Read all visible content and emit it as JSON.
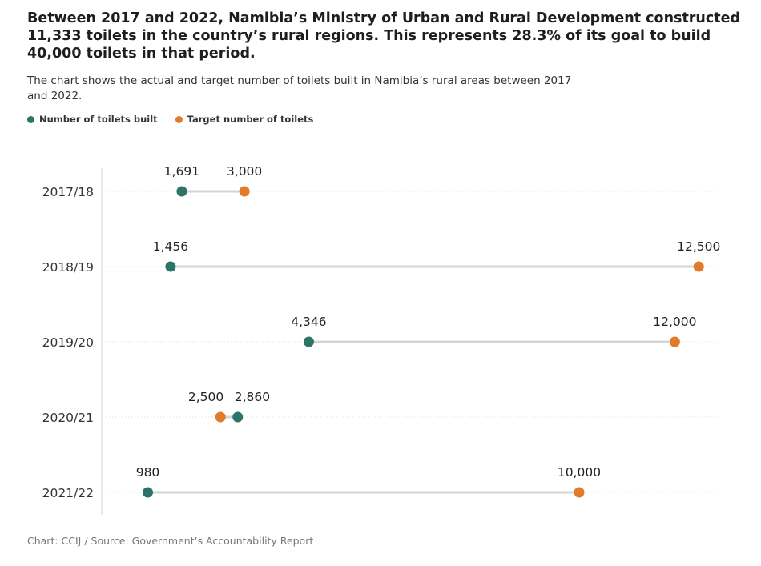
{
  "title": "Between 2017 and 2022, Namibia’s Ministry of Urban and Rural Development constructed 11,333 toilets in the country’s rural regions. This represents 28.3% of its goal to build 40,000 toilets in that period.",
  "subtitle": "The chart shows the actual and target number of toilets built in Namibia’s rural areas between 2017 and 2022.",
  "source": "Chart: CCIJ / Source: Government’s Accountability Report",
  "colors": {
    "built": "#2e7466",
    "target": "#e07b2b",
    "connector": "#d4d4d4"
  },
  "chart_data": {
    "type": "dumbbell",
    "title": "Between 2017 and 2022, Namibia’s Ministry of Urban and Rural Development constructed 11,333 toilets in the country’s rural regions.",
    "legend": [
      {
        "name": "Number of toilets built",
        "color": "#2e7466"
      },
      {
        "name": "Target number of toilets",
        "color": "#e07b2b"
      }
    ],
    "legend_position": "top-left",
    "categories": [
      "2017/18",
      "2018/19",
      "2019/20",
      "2020/21",
      "2021/22"
    ],
    "series": [
      {
        "name": "Number of toilets built",
        "values": [
          1691,
          1456,
          4346,
          2860,
          980
        ],
        "labels": [
          "1,691",
          "1,456",
          "4,346",
          "2,860",
          "980"
        ]
      },
      {
        "name": "Target number of toilets",
        "values": [
          3000,
          12500,
          12000,
          2500,
          10000
        ],
        "labels": [
          "3,000",
          "12,500",
          "12,000",
          "2,500",
          "10,000"
        ]
      }
    ],
    "xlim": [
      0,
      13000
    ],
    "grid": true
  }
}
